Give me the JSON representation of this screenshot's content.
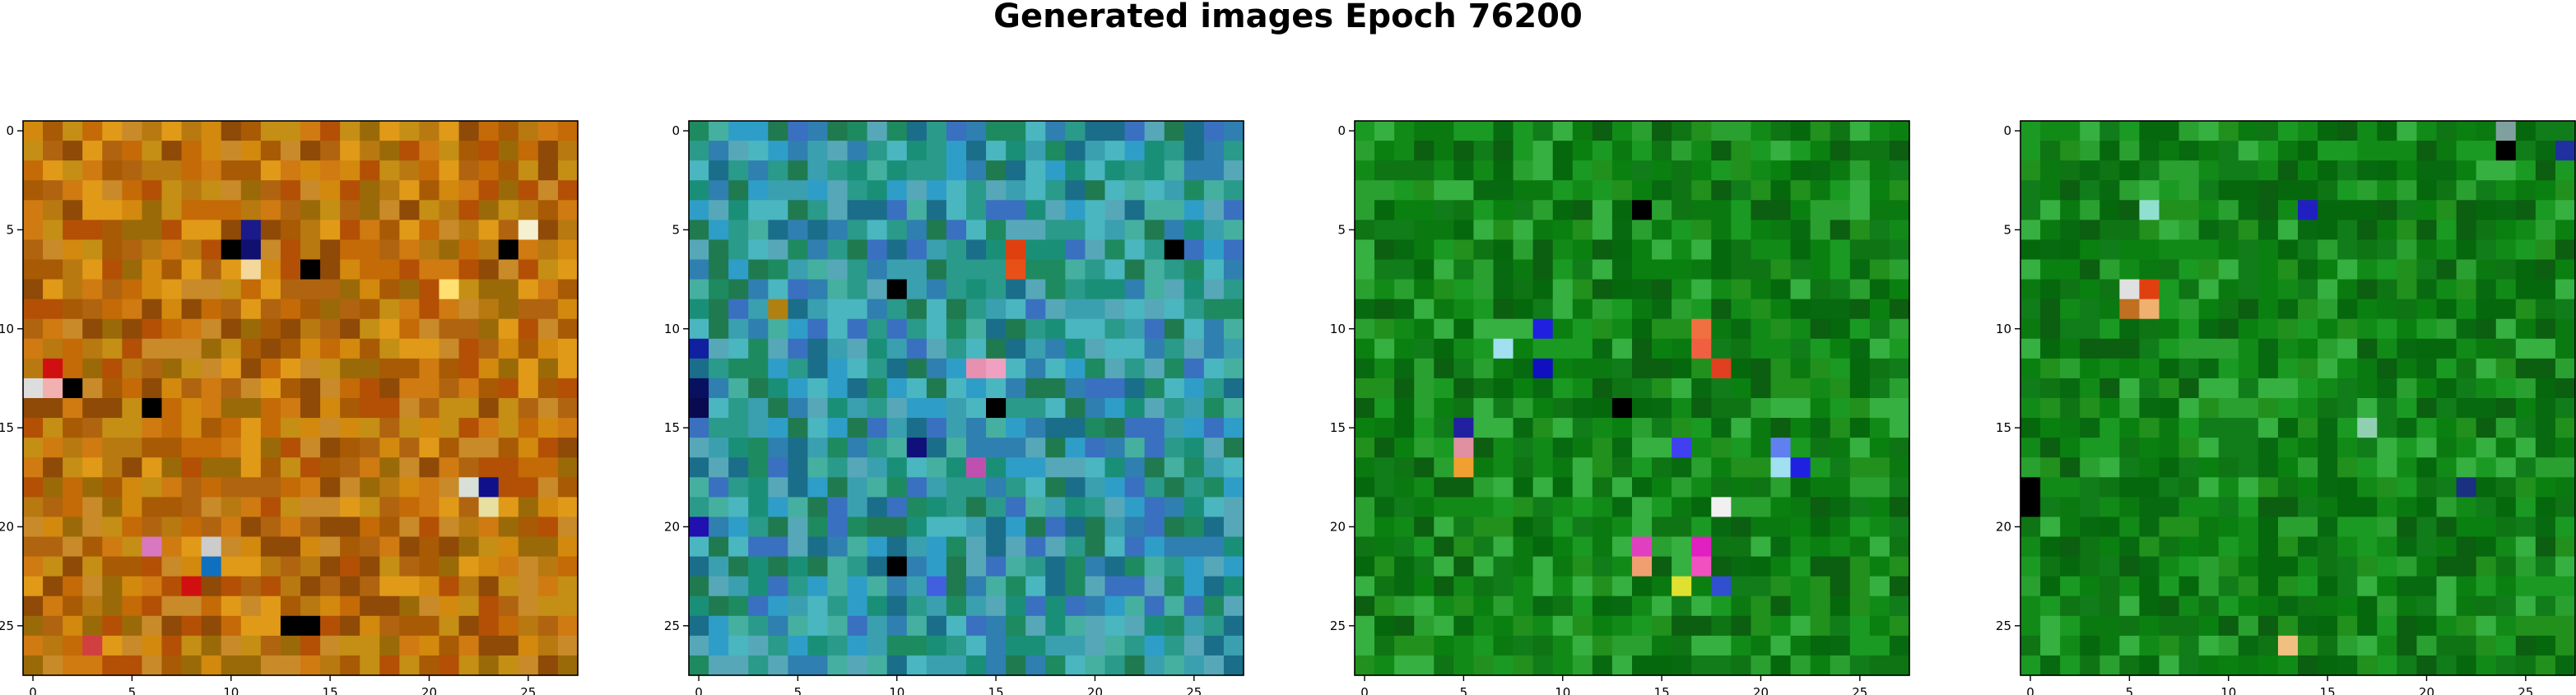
{
  "figure": {
    "title": "Generated images Epoch 76200"
  },
  "chart_data": [
    {
      "type": "heatmap",
      "size": [
        28,
        28
      ],
      "xlim": [
        -0.5,
        27.5
      ],
      "ylim": [
        27.5,
        -0.5
      ],
      "xticks": [
        0,
        5,
        10,
        15,
        20,
        25
      ],
      "yticks": [
        0,
        5,
        10,
        15,
        20,
        25
      ],
      "grid": false,
      "palette": [
        "#c46a06",
        "#b87910",
        "#d2890e",
        "#a85a04",
        "#c48f14",
        "#9b6a08",
        "#d07a12",
        "#b35005",
        "#e09a18",
        "#8e4a06",
        "#c98a2a",
        "#b06410"
      ],
      "accents": [
        {
          "row": 5,
          "col": 11,
          "color": "#1a1a8a"
        },
        {
          "row": 6,
          "col": 10,
          "color": "#000000"
        },
        {
          "row": 6,
          "col": 11,
          "color": "#101070"
        },
        {
          "row": 7,
          "col": 11,
          "color": "#f4d79a"
        },
        {
          "row": 7,
          "col": 14,
          "color": "#000000"
        },
        {
          "row": 5,
          "col": 25,
          "color": "#f5f0d0"
        },
        {
          "row": 6,
          "col": 24,
          "color": "#000000"
        },
        {
          "row": 8,
          "col": 21,
          "color": "#ffe070"
        },
        {
          "row": 12,
          "col": 1,
          "color": "#d01010"
        },
        {
          "row": 13,
          "col": 0,
          "color": "#dddddd"
        },
        {
          "row": 13,
          "col": 1,
          "color": "#f2b0b0"
        },
        {
          "row": 13,
          "col": 2,
          "color": "#000000"
        },
        {
          "row": 14,
          "col": 6,
          "color": "#000000"
        },
        {
          "row": 18,
          "col": 23,
          "color": "#10108a"
        },
        {
          "row": 18,
          "col": 22,
          "color": "#d8e0d8"
        },
        {
          "row": 19,
          "col": 23,
          "color": "#e8e0a0"
        },
        {
          "row": 21,
          "col": 6,
          "color": "#d878c0"
        },
        {
          "row": 21,
          "col": 9,
          "color": "#cccccc"
        },
        {
          "row": 22,
          "col": 9,
          "color": "#1070c0"
        },
        {
          "row": 23,
          "col": 8,
          "color": "#d01010"
        },
        {
          "row": 25,
          "col": 13,
          "color": "#000000"
        },
        {
          "row": 25,
          "col": 14,
          "color": "#000000"
        },
        {
          "row": 26,
          "col": 3,
          "color": "#d04040"
        }
      ],
      "seed": 11
    },
    {
      "type": "heatmap",
      "size": [
        28,
        28
      ],
      "xlim": [
        -0.5,
        27.5
      ],
      "ylim": [
        27.5,
        -0.5
      ],
      "xticks": [
        0,
        5,
        10,
        15,
        20,
        25
      ],
      "yticks": [
        0,
        5,
        10,
        15,
        20,
        25
      ],
      "grid": false,
      "palette": [
        "#2a9a8a",
        "#3aa0b0",
        "#1e8a60",
        "#2f7fb0",
        "#45b0a0",
        "#1a6e8a",
        "#2e9ec8",
        "#4ab6c0",
        "#207a50",
        "#3a70c0",
        "#56a8b8",
        "#1a8f78"
      ],
      "accents": [
        {
          "row": 6,
          "col": 16,
          "color": "#e04010"
        },
        {
          "row": 7,
          "col": 16,
          "color": "#e85018"
        },
        {
          "row": 12,
          "col": 14,
          "color": "#e890b0"
        },
        {
          "row": 12,
          "col": 15,
          "color": "#f0a0c0"
        },
        {
          "row": 14,
          "col": 15,
          "color": "#000000"
        },
        {
          "row": 13,
          "col": 0,
          "color": "#0a1060"
        },
        {
          "row": 14,
          "col": 0,
          "color": "#0a0a50"
        },
        {
          "row": 17,
          "col": 14,
          "color": "#c050b0"
        },
        {
          "row": 11,
          "col": 0,
          "color": "#1020a0"
        },
        {
          "row": 20,
          "col": 0,
          "color": "#2010b0"
        },
        {
          "row": 22,
          "col": 10,
          "color": "#000000"
        },
        {
          "row": 8,
          "col": 10,
          "color": "#000000"
        },
        {
          "row": 6,
          "col": 24,
          "color": "#000000"
        },
        {
          "row": 16,
          "col": 11,
          "color": "#10107a"
        },
        {
          "row": 23,
          "col": 12,
          "color": "#4060e0"
        },
        {
          "row": 9,
          "col": 4,
          "color": "#b08010"
        }
      ],
      "seed": 23
    },
    {
      "type": "heatmap",
      "size": [
        28,
        28
      ],
      "xlim": [
        -0.5,
        27.5
      ],
      "ylim": [
        27.5,
        -0.5
      ],
      "xticks": [
        0,
        5,
        10,
        15,
        20,
        25
      ],
      "yticks": [
        0,
        5,
        10,
        15,
        20,
        25
      ],
      "grid": false,
      "palette": [
        "#0a7a10",
        "#128a18",
        "#06680c",
        "#1a9a22",
        "#0e7414",
        "#2aa030",
        "#086a10",
        "#36b040",
        "#117c1a",
        "#0c5e10",
        "#22901c",
        "#0a8010"
      ],
      "accents": [
        {
          "row": 10,
          "col": 9,
          "color": "#2020e0"
        },
        {
          "row": 11,
          "col": 7,
          "color": "#a0e0f0"
        },
        {
          "row": 12,
          "col": 9,
          "color": "#1010c0"
        },
        {
          "row": 10,
          "col": 17,
          "color": "#f07040"
        },
        {
          "row": 11,
          "col": 17,
          "color": "#f06040"
        },
        {
          "row": 12,
          "col": 18,
          "color": "#e04020"
        },
        {
          "row": 16,
          "col": 5,
          "color": "#e090a0"
        },
        {
          "row": 17,
          "col": 5,
          "color": "#f0a030"
        },
        {
          "row": 16,
          "col": 16,
          "color": "#4040f0"
        },
        {
          "row": 16,
          "col": 21,
          "color": "#6080f0"
        },
        {
          "row": 17,
          "col": 21,
          "color": "#a0e0f0"
        },
        {
          "row": 17,
          "col": 22,
          "color": "#2020e0"
        },
        {
          "row": 19,
          "col": 18,
          "color": "#f0f0f0"
        },
        {
          "row": 21,
          "col": 14,
          "color": "#e040c0"
        },
        {
          "row": 21,
          "col": 17,
          "color": "#e020c0"
        },
        {
          "row": 22,
          "col": 14,
          "color": "#f0a070"
        },
        {
          "row": 22,
          "col": 17,
          "color": "#f050c0"
        },
        {
          "row": 23,
          "col": 16,
          "color": "#e0e030"
        },
        {
          "row": 23,
          "col": 18,
          "color": "#3050d0"
        },
        {
          "row": 14,
          "col": 13,
          "color": "#000000"
        },
        {
          "row": 4,
          "col": 14,
          "color": "#000000"
        },
        {
          "row": 15,
          "col": 5,
          "color": "#2020a0"
        }
      ],
      "seed": 37
    },
    {
      "type": "heatmap",
      "size": [
        28,
        28
      ],
      "xlim": [
        -0.5,
        27.5
      ],
      "ylim": [
        27.5,
        -0.5
      ],
      "xticks": [
        0,
        5,
        10,
        15,
        20,
        25
      ],
      "yticks": [
        0,
        5,
        10,
        15,
        20,
        25
      ],
      "grid": false,
      "palette": [
        "#0a7a10",
        "#128a18",
        "#06680c",
        "#1a9a22",
        "#0e7414",
        "#2aa030",
        "#086a10",
        "#36b040",
        "#117c1a",
        "#0c5e10",
        "#22901c",
        "#0a8010"
      ],
      "accents": [
        {
          "row": 1,
          "col": 24,
          "color": "#000000"
        },
        {
          "row": 0,
          "col": 24,
          "color": "#80a0a0"
        },
        {
          "row": 1,
          "col": 27,
          "color": "#2030a0"
        },
        {
          "row": 4,
          "col": 14,
          "color": "#2020c0"
        },
        {
          "row": 4,
          "col": 6,
          "color": "#90e0d0"
        },
        {
          "row": 8,
          "col": 5,
          "color": "#e0e0e0"
        },
        {
          "row": 8,
          "col": 6,
          "color": "#e04010"
        },
        {
          "row": 9,
          "col": 5,
          "color": "#c07020"
        },
        {
          "row": 9,
          "col": 6,
          "color": "#f0b070"
        },
        {
          "row": 18,
          "col": 0,
          "color": "#000000"
        },
        {
          "row": 19,
          "col": 0,
          "color": "#000000"
        },
        {
          "row": 26,
          "col": 13,
          "color": "#f0c080"
        },
        {
          "row": 18,
          "col": 22,
          "color": "#1a3080"
        },
        {
          "row": 15,
          "col": 17,
          "color": "#90d0b0"
        }
      ],
      "seed": 53
    }
  ]
}
